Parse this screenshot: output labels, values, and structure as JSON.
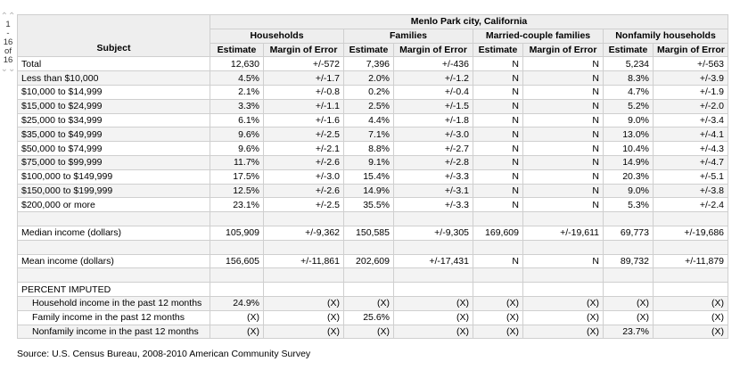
{
  "pager": {
    "up_arrows": "⌃⌃",
    "down_arrows": "⌄⌄",
    "current": "1",
    "dash": "-",
    "last": "16",
    "of": "of",
    "total": "16"
  },
  "table": {
    "place_header": "Menlo Park city, California",
    "subject_header": "Subject",
    "groups": [
      "Households",
      "Families",
      "Married-couple families",
      "Nonfamily households"
    ],
    "subheaders": [
      "Estimate",
      "Margin of Error",
      "Estimate",
      "Margin of Error",
      "Estimate",
      "Margin of Error",
      "Estimate",
      "Margin of Error"
    ],
    "rows": [
      {
        "label": "Total",
        "values": [
          "12,630",
          "+/-572",
          "7,396",
          "+/-436",
          "N",
          "N",
          "5,234",
          "+/-563"
        ]
      },
      {
        "label": "Less than $10,000",
        "values": [
          "4.5%",
          "+/-1.7",
          "2.0%",
          "+/-1.2",
          "N",
          "N",
          "8.3%",
          "+/-3.9"
        ]
      },
      {
        "label": "$10,000 to $14,999",
        "values": [
          "2.1%",
          "+/-0.8",
          "0.2%",
          "+/-0.4",
          "N",
          "N",
          "4.7%",
          "+/-1.9"
        ]
      },
      {
        "label": "$15,000 to $24,999",
        "values": [
          "3.3%",
          "+/-1.1",
          "2.5%",
          "+/-1.5",
          "N",
          "N",
          "5.2%",
          "+/-2.0"
        ]
      },
      {
        "label": "$25,000 to $34,999",
        "values": [
          "6.1%",
          "+/-1.6",
          "4.4%",
          "+/-1.8",
          "N",
          "N",
          "9.0%",
          "+/-3.4"
        ]
      },
      {
        "label": "$35,000 to $49,999",
        "values": [
          "9.6%",
          "+/-2.5",
          "7.1%",
          "+/-3.0",
          "N",
          "N",
          "13.0%",
          "+/-4.1"
        ]
      },
      {
        "label": "$50,000 to $74,999",
        "values": [
          "9.6%",
          "+/-2.1",
          "8.8%",
          "+/-2.7",
          "N",
          "N",
          "10.4%",
          "+/-4.3"
        ]
      },
      {
        "label": "$75,000 to $99,999",
        "values": [
          "11.7%",
          "+/-2.6",
          "9.1%",
          "+/-2.8",
          "N",
          "N",
          "14.9%",
          "+/-4.7"
        ]
      },
      {
        "label": "$100,000 to $149,999",
        "values": [
          "17.5%",
          "+/-3.0",
          "15.4%",
          "+/-3.3",
          "N",
          "N",
          "20.3%",
          "+/-5.1"
        ]
      },
      {
        "label": "$150,000 to $199,999",
        "values": [
          "12.5%",
          "+/-2.6",
          "14.9%",
          "+/-3.1",
          "N",
          "N",
          "9.0%",
          "+/-3.8"
        ]
      },
      {
        "label": "$200,000 or more",
        "values": [
          "23.1%",
          "+/-2.5",
          "35.5%",
          "+/-3.3",
          "N",
          "N",
          "5.3%",
          "+/-2.4"
        ]
      },
      {
        "blank": true
      },
      {
        "label": "Median income (dollars)",
        "values": [
          "105,909",
          "+/-9,362",
          "150,585",
          "+/-9,305",
          "169,609",
          "+/-19,611",
          "69,773",
          "+/-19,686"
        ]
      },
      {
        "blank": true
      },
      {
        "label": "Mean income (dollars)",
        "values": [
          "156,605",
          "+/-11,861",
          "202,609",
          "+/-17,431",
          "N",
          "N",
          "89,732",
          "+/-11,879"
        ]
      },
      {
        "blank": true
      },
      {
        "label": "PERCENT IMPUTED",
        "values": [
          "",
          "",
          "",
          "",
          "",
          "",
          "",
          ""
        ]
      },
      {
        "label": "Household income in the past 12 months",
        "indent": true,
        "values": [
          "24.9%",
          "(X)",
          "(X)",
          "(X)",
          "(X)",
          "(X)",
          "(X)",
          "(X)"
        ]
      },
      {
        "label": "Family income in the past 12 months",
        "indent": true,
        "values": [
          "(X)",
          "(X)",
          "25.6%",
          "(X)",
          "(X)",
          "(X)",
          "(X)",
          "(X)"
        ]
      },
      {
        "label": "Nonfamily income in the past 12 months",
        "indent": true,
        "values": [
          "(X)",
          "(X)",
          "(X)",
          "(X)",
          "(X)",
          "(X)",
          "23.7%",
          "(X)"
        ]
      }
    ]
  },
  "source": "Source: U.S. Census Bureau, 2008-2010 American Community Survey"
}
